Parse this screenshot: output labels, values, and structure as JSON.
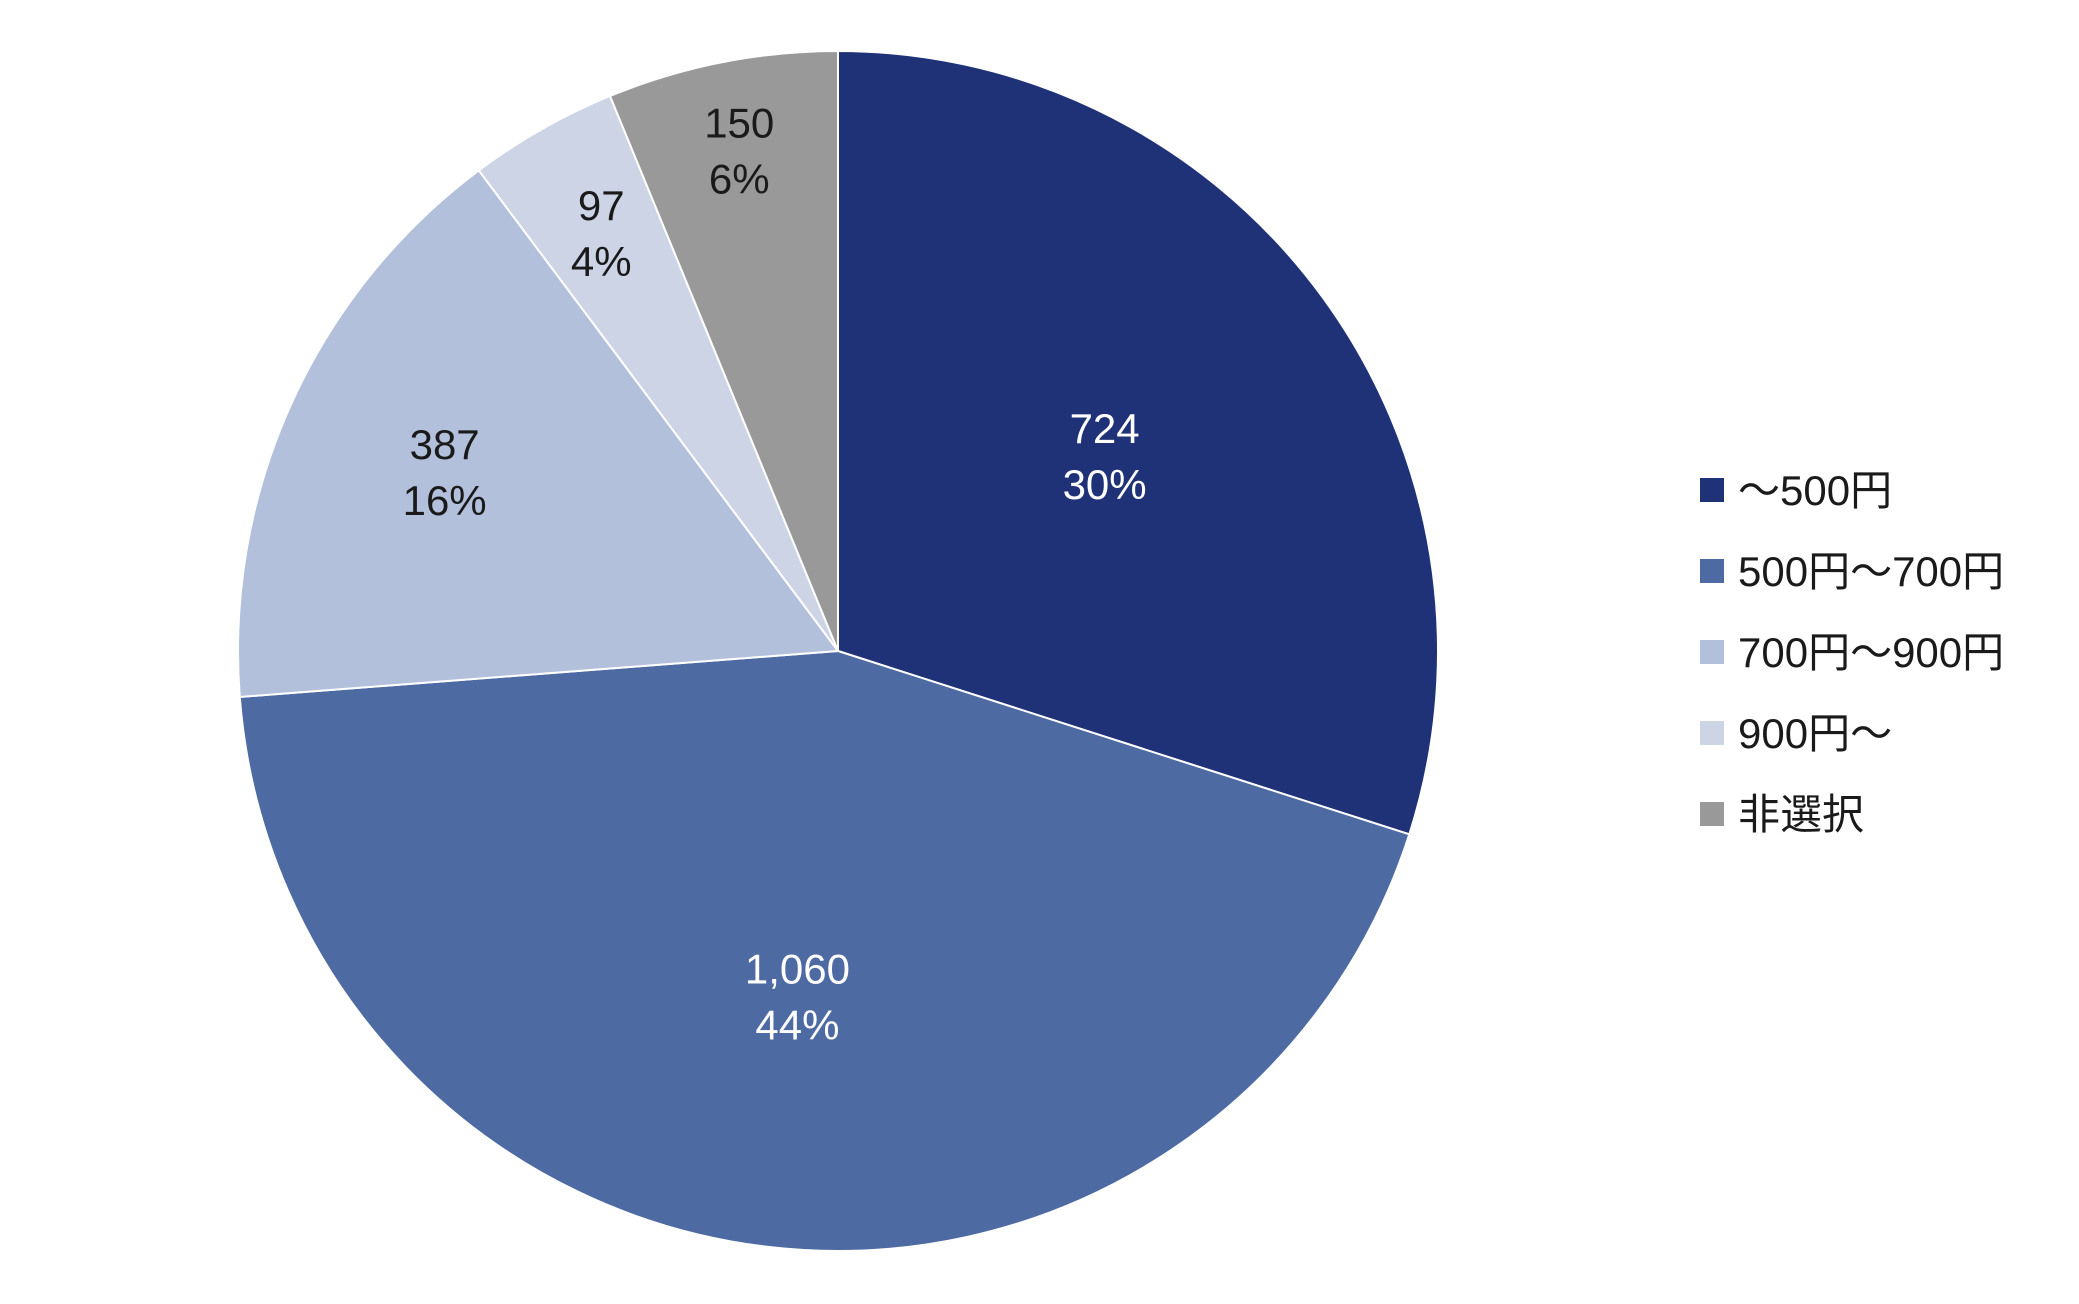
{
  "chart_data": {
    "type": "pie",
    "title": "",
    "series": [
      {
        "categories": [
          "～500円",
          "500円～700円",
          "700円～900円",
          "900円～",
          "非選択"
        ],
        "values": [
          724,
          1060,
          387,
          97,
          150
        ],
        "value_labels": [
          "724",
          "1,060",
          "387",
          "97",
          "150"
        ],
        "percent_labels": [
          "30%",
          "44%",
          "16%",
          "4%",
          "6%"
        ],
        "colors": [
          "#1f3177",
          "#4e6aa2",
          "#b2c0dc",
          "#ccd4e6",
          "#999999"
        ],
        "label_colors": [
          "#ffffff",
          "#ffffff",
          "#1a1a1a",
          "#1a1a1a",
          "#1a1a1a"
        ]
      }
    ],
    "start_angle": "12 o'clock",
    "direction": "clockwise",
    "legend": {
      "position": "right",
      "entries": [
        "～500円",
        "500円～700円",
        "700円～900円",
        "900円～",
        "非選択"
      ]
    }
  }
}
